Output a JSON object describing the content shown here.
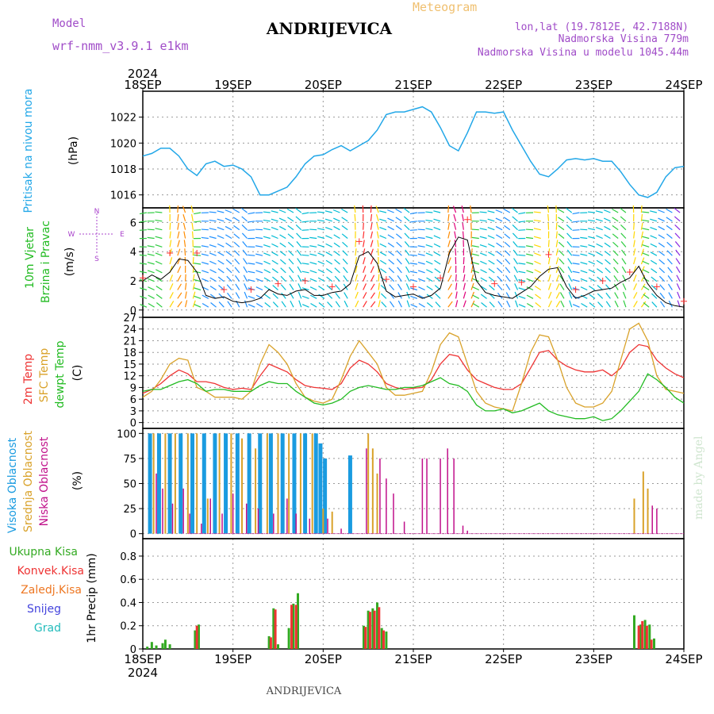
{
  "header": {
    "model_label": "Model",
    "model_name": "wrf-nmm_v3.9.1  e1km",
    "station": "ANDRIJEVICA",
    "chart_title": "Meteogram",
    "lonlat": "lon,lat (19.7812E, 42.7188N)",
    "elevation": "Nadmorska Visina 779m",
    "model_elevation": "Nadmorska Visina u modelu 1045.44m",
    "footer_station": "ANDRIJEVICA",
    "watermark": "made by Angel"
  },
  "colors": {
    "pressure": "#22a7e8",
    "temp2m": "#ee3333",
    "sfc": "#d9a22a",
    "dewpt": "#22bb22",
    "high_cloud": "#1a9be0",
    "mid_cloud": "#d9a22a",
    "low_cloud": "#c0108a",
    "precip_total": "#33aa22",
    "precip_conv": "#ee3333",
    "precip_frozen": "#ee7722",
    "snow": "#4444dd",
    "hail": "#22bbbb",
    "wind_label": "#22bb22",
    "vane": "#aa44cc",
    "title_purple": "#a04cc8"
  },
  "chart_data": [
    {
      "id": "pressure",
      "type": "line",
      "ylabel": [
        "Pritisak na nivou mora",
        "(hPa)"
      ],
      "ylim": [
        1015,
        1024
      ],
      "yticks": [
        1016,
        1018,
        1020,
        1022
      ],
      "x_start_day": 18,
      "x_ticks": [
        "18SEP",
        "19SEP",
        "20SEP",
        "21SEP",
        "22SEP",
        "23SEP",
        "24SEP"
      ],
      "year": "2024",
      "x": [
        0,
        0.1,
        0.2,
        0.3,
        0.4,
        0.5,
        0.6,
        0.7,
        0.8,
        0.9,
        1.0,
        1.1,
        1.2,
        1.3,
        1.4,
        1.5,
        1.6,
        1.7,
        1.8,
        1.9,
        2.0,
        2.1,
        2.2,
        2.3,
        2.4,
        2.5,
        2.6,
        2.7,
        2.8,
        2.9,
        3.0,
        3.1,
        3.2,
        3.3,
        3.4,
        3.5,
        3.6,
        3.7,
        3.8,
        3.9,
        4.0,
        4.1,
        4.2,
        4.3,
        4.4,
        4.5,
        4.6,
        4.7,
        4.8,
        4.9,
        5.0,
        5.1,
        5.2,
        5.3,
        5.4,
        5.5,
        5.6,
        5.7,
        5.8,
        5.9,
        6.0
      ],
      "values": [
        1019.0,
        1019.2,
        1019.6,
        1019.6,
        1019.0,
        1018.0,
        1017.5,
        1018.4,
        1018.6,
        1018.2,
        1018.3,
        1018.0,
        1017.4,
        1016.0,
        1016.0,
        1016.3,
        1016.6,
        1017.4,
        1018.4,
        1019.0,
        1019.1,
        1019.5,
        1019.8,
        1019.4,
        1019.8,
        1020.2,
        1021.0,
        1022.2,
        1022.4,
        1022.4,
        1022.6,
        1022.8,
        1022.4,
        1021.2,
        1019.8,
        1019.4,
        1020.8,
        1022.4,
        1022.4,
        1022.3,
        1022.4,
        1021.0,
        1019.8,
        1018.6,
        1017.6,
        1017.4,
        1018.0,
        1018.7,
        1018.8,
        1018.7,
        1018.8,
        1018.6,
        1018.6,
        1017.8,
        1016.8,
        1016.0,
        1015.8,
        1016.2,
        1017.4,
        1018.1,
        1018.2
      ]
    },
    {
      "id": "wind",
      "type": "line",
      "ylabel": [
        "10m Vjetar",
        "Brzina i Pravac",
        "(m/s)"
      ],
      "ylim": [
        -0.5,
        7
      ],
      "yticks": [
        0,
        2,
        4,
        6
      ],
      "compass": {
        "n": "N",
        "e": "E",
        "w": "W",
        "s": "S"
      },
      "x": [
        0,
        0.1,
        0.2,
        0.3,
        0.4,
        0.5,
        0.6,
        0.7,
        0.8,
        0.9,
        1.0,
        1.1,
        1.2,
        1.3,
        1.4,
        1.5,
        1.6,
        1.7,
        1.8,
        1.9,
        2.0,
        2.1,
        2.2,
        2.3,
        2.4,
        2.5,
        2.6,
        2.7,
        2.8,
        2.9,
        3.0,
        3.1,
        3.2,
        3.3,
        3.4,
        3.5,
        3.6,
        3.7,
        3.8,
        3.9,
        4.0,
        4.1,
        4.2,
        4.3,
        4.4,
        4.5,
        4.6,
        4.7,
        4.8,
        4.9,
        5.0,
        5.1,
        5.2,
        5.3,
        5.4,
        5.5,
        5.6,
        5.7,
        5.8,
        5.9,
        6.0
      ],
      "values": [
        2.0,
        2.4,
        2.1,
        2.6,
        3.5,
        3.4,
        2.6,
        1.0,
        0.8,
        0.9,
        0.6,
        0.5,
        0.6,
        0.8,
        1.4,
        1.1,
        1.0,
        1.3,
        1.4,
        1.0,
        1.0,
        1.2,
        1.3,
        1.8,
        3.7,
        4.0,
        3.2,
        1.3,
        0.9,
        1.0,
        1.1,
        0.8,
        1.0,
        1.5,
        3.9,
        5.0,
        4.8,
        2.0,
        1.2,
        1.0,
        0.9,
        0.8,
        1.2,
        1.6,
        2.3,
        2.8,
        2.9,
        1.6,
        0.8,
        1.0,
        1.3,
        1.4,
        1.5,
        1.9,
        2.2,
        3.0,
        1.8,
        1.0,
        0.5,
        0.3,
        0.2
      ],
      "gusts": [
        2.2,
        2.0,
        2.2,
        3.9,
        4.2,
        4.1,
        3.9,
        1.6,
        1.4,
        1.4,
        1.2,
        1.3,
        1.4,
        1.3,
        2.0,
        1.8,
        1.6,
        1.8,
        2.0,
        1.7,
        1.6,
        1.6,
        1.9,
        2.6,
        4.7,
        5.0,
        4.4,
        2.1,
        1.6,
        1.5,
        1.6,
        1.4,
        1.7,
        2.2,
        5.1,
        6.4,
        6.2,
        3.0,
        2.0,
        1.8,
        1.6,
        1.4,
        1.9,
        2.2,
        3.0,
        3.8,
        4.0,
        2.4,
        1.4,
        1.6,
        1.8,
        2.0,
        2.2,
        2.4,
        2.6,
        3.2,
        2.4,
        1.6,
        1.0,
        0.8,
        0.6
      ]
    },
    {
      "id": "temperature",
      "type": "line",
      "ylabel": [
        "2m Temp",
        "SFC Temp",
        "dewpt Temp",
        "(C)"
      ],
      "ylim": [
        -1.5,
        27
      ],
      "yticks": [
        0,
        3,
        6,
        9,
        12,
        15,
        18,
        21,
        24,
        27
      ],
      "series": [
        {
          "name": "2m Temp",
          "x": [
            0,
            0.1,
            0.2,
            0.3,
            0.4,
            0.5,
            0.6,
            0.7,
            0.8,
            0.9,
            1.0,
            1.1,
            1.2,
            1.3,
            1.4,
            1.5,
            1.6,
            1.7,
            1.8,
            1.9,
            2.0,
            2.1,
            2.2,
            2.3,
            2.4,
            2.5,
            2.6,
            2.7,
            2.8,
            2.9,
            3.0,
            3.1,
            3.2,
            3.3,
            3.4,
            3.5,
            3.6,
            3.7,
            3.8,
            3.9,
            4.0,
            4.1,
            4.2,
            4.3,
            4.4,
            4.5,
            4.6,
            4.7,
            4.8,
            4.9,
            5.0,
            5.1,
            5.2,
            5.3,
            5.4,
            5.5,
            5.6,
            5.7,
            5.8,
            5.9,
            6.0
          ],
          "values": [
            7.5,
            8.5,
            10.0,
            12.0,
            13.5,
            12.5,
            10.5,
            10.5,
            10.0,
            9.0,
            8.5,
            8.8,
            8.5,
            12.0,
            15.0,
            14.0,
            13.0,
            11.0,
            9.5,
            9.0,
            8.8,
            8.5,
            10.0,
            14.0,
            16.0,
            15.0,
            13.0,
            10.0,
            9.0,
            8.5,
            8.8,
            9.0,
            11.0,
            15.0,
            17.5,
            17.0,
            13.5,
            11.0,
            10.0,
            9.0,
            8.5,
            8.5,
            10.0,
            14.0,
            18.0,
            18.5,
            16.0,
            14.5,
            13.5,
            13.0,
            13.0,
            13.5,
            12.0,
            14.0,
            18.0,
            20.0,
            19.5,
            16.0,
            14.0,
            12.5,
            11.5
          ]
        },
        {
          "name": "SFC Temp",
          "x": [
            0,
            0.1,
            0.2,
            0.3,
            0.4,
            0.5,
            0.6,
            0.7,
            0.8,
            0.9,
            1.0,
            1.1,
            1.2,
            1.3,
            1.4,
            1.5,
            1.6,
            1.7,
            1.8,
            1.9,
            2.0,
            2.1,
            2.2,
            2.3,
            2.4,
            2.5,
            2.6,
            2.7,
            2.8,
            2.9,
            3.0,
            3.1,
            3.2,
            3.3,
            3.4,
            3.5,
            3.6,
            3.7,
            3.8,
            3.9,
            4.0,
            4.1,
            4.2,
            4.3,
            4.4,
            4.5,
            4.6,
            4.7,
            4.8,
            4.9,
            5.0,
            5.1,
            5.2,
            5.3,
            5.4,
            5.5,
            5.6,
            5.7,
            5.8,
            5.9,
            6.0
          ],
          "values": [
            6.5,
            8.0,
            11.0,
            15.0,
            16.5,
            16.0,
            9.0,
            8.0,
            6.5,
            6.5,
            6.5,
            6.0,
            8.0,
            15.0,
            20.0,
            18.0,
            15.0,
            10.0,
            6.5,
            5.5,
            5.0,
            6.0,
            11.0,
            17.0,
            21.0,
            18.0,
            15.0,
            9.0,
            7.0,
            7.0,
            7.5,
            8.0,
            13.0,
            20.0,
            23.0,
            22.0,
            15.0,
            8.0,
            5.0,
            4.0,
            3.5,
            3.0,
            10.0,
            18.0,
            22.5,
            22.0,
            16.0,
            9.0,
            5.0,
            4.0,
            4.0,
            5.0,
            8.0,
            16.0,
            24.0,
            25.5,
            21.0,
            12.0,
            8.5,
            8.0,
            7.5
          ]
        },
        {
          "name": "dewpt Temp",
          "x": [
            0,
            0.1,
            0.2,
            0.3,
            0.4,
            0.5,
            0.6,
            0.7,
            0.8,
            0.9,
            1.0,
            1.1,
            1.2,
            1.3,
            1.4,
            1.5,
            1.6,
            1.7,
            1.8,
            1.9,
            2.0,
            2.1,
            2.2,
            2.3,
            2.4,
            2.5,
            2.6,
            2.7,
            2.8,
            2.9,
            3.0,
            3.1,
            3.2,
            3.3,
            3.4,
            3.5,
            3.6,
            3.7,
            3.8,
            3.9,
            4.0,
            4.1,
            4.2,
            4.3,
            4.4,
            4.5,
            4.6,
            4.7,
            4.8,
            4.9,
            5.0,
            5.1,
            5.2,
            5.3,
            5.4,
            5.5,
            5.6,
            5.7,
            5.8,
            5.9,
            6.0
          ],
          "values": [
            8.0,
            8.5,
            8.5,
            9.5,
            10.5,
            11.0,
            10.0,
            8.0,
            8.5,
            8.5,
            8.0,
            8.0,
            8.0,
            9.5,
            10.5,
            10.0,
            10.0,
            8.0,
            6.5,
            5.0,
            4.5,
            5.0,
            6.0,
            8.0,
            9.0,
            9.5,
            9.0,
            8.5,
            8.5,
            9.0,
            9.0,
            9.5,
            10.5,
            11.5,
            10.0,
            9.5,
            8.0,
            4.5,
            3.0,
            3.0,
            3.5,
            2.5,
            3.0,
            4.0,
            5.0,
            3.0,
            2.0,
            1.5,
            1.0,
            1.0,
            1.5,
            0.5,
            1.0,
            3.0,
            5.5,
            8.0,
            12.5,
            11.0,
            9.0,
            6.5,
            5.0
          ]
        }
      ]
    },
    {
      "id": "cloud",
      "type": "bar",
      "ylabel": [
        "Visoka Oblacnost",
        "Srednja Oblacnost",
        "Niska Oblacnost",
        "(%)"
      ],
      "ylim": [
        -5,
        105
      ],
      "yticks": [
        0,
        25,
        50,
        75,
        100
      ],
      "series": [
        {
          "name": "Visoka Oblacnost",
          "x": [
            0.08,
            0.18,
            0.3,
            0.42,
            0.55,
            0.68,
            0.8,
            0.92,
            1.05,
            1.18,
            1.3,
            1.42,
            1.55,
            1.68,
            1.8,
            1.92,
            1.97,
            2.02,
            2.3
          ],
          "values": [
            100,
            100,
            100,
            100,
            100,
            100,
            100,
            100,
            100,
            100,
            100,
            100,
            100,
            100,
            100,
            100,
            90,
            75,
            78
          ]
        },
        {
          "name": "Srednja Oblacnost",
          "x": [
            0.12,
            0.25,
            0.36,
            0.5,
            0.6,
            0.72,
            0.85,
            0.98,
            1.1,
            1.25,
            1.38,
            1.5,
            1.62,
            1.75,
            1.88,
            2.0,
            2.1,
            2.5,
            2.55,
            2.6,
            5.45,
            5.55,
            5.6
          ],
          "values": [
            100,
            100,
            100,
            100,
            100,
            35,
            100,
            100,
            95,
            85,
            100,
            100,
            100,
            100,
            100,
            25,
            22,
            100,
            85,
            60,
            35,
            62,
            45
          ]
        },
        {
          "name": "Niska Oblacnost",
          "x": [
            0.15,
            0.22,
            0.33,
            0.45,
            0.52,
            0.65,
            0.75,
            0.88,
            1.0,
            1.15,
            1.28,
            1.45,
            1.6,
            1.7,
            1.85,
            2.05,
            2.2,
            2.48,
            2.63,
            2.7,
            2.78,
            2.9,
            3.1,
            3.15,
            3.3,
            3.38,
            3.45,
            3.55,
            3.6,
            5.65,
            5.7
          ],
          "values": [
            60,
            45,
            30,
            45,
            20,
            10,
            35,
            20,
            40,
            30,
            25,
            20,
            35,
            20,
            15,
            15,
            5,
            85,
            75,
            55,
            40,
            12,
            75,
            75,
            75,
            85,
            75,
            8,
            3,
            28,
            25
          ]
        }
      ]
    },
    {
      "id": "precip",
      "type": "bar",
      "ylabel": [
        "1hr Precip (mm)"
      ],
      "legend": [
        "Ukupna Kisa",
        "Konvek.Kisa",
        "Zaledj.Kisa",
        "Snijeg",
        "Grad"
      ],
      "ylim": [
        0,
        0.95
      ],
      "yticks": [
        0,
        0.2,
        0.4,
        0.6,
        0.8
      ],
      "series": [
        {
          "name": "Ukupna Kisa",
          "x": [
            0.05,
            0.1,
            0.15,
            0.22,
            0.25,
            0.3,
            0.58,
            0.62,
            1.4,
            1.45,
            1.5,
            1.62,
            1.67,
            1.72,
            2.45,
            2.5,
            2.55,
            2.6,
            2.65,
            2.7,
            5.45,
            5.52,
            5.57,
            5.62,
            5.67
          ],
          "values": [
            0.02,
            0.06,
            0.03,
            0.05,
            0.08,
            0.04,
            0.16,
            0.21,
            0.11,
            0.35,
            0.04,
            0.18,
            0.39,
            0.48,
            0.2,
            0.33,
            0.35,
            0.4,
            0.18,
            0.15,
            0.29,
            0.21,
            0.25,
            0.21,
            0.09
          ]
        },
        {
          "name": "Konvek.Kisa",
          "x": [
            0.6,
            1.42,
            1.47,
            1.65,
            1.7,
            2.47,
            2.52,
            2.57,
            2.62,
            2.67,
            5.5,
            5.54,
            5.59,
            5.64
          ],
          "values": [
            0.2,
            0.1,
            0.34,
            0.38,
            0.38,
            0.19,
            0.32,
            0.33,
            0.36,
            0.16,
            0.2,
            0.24,
            0.2,
            0.08
          ]
        }
      ]
    }
  ]
}
